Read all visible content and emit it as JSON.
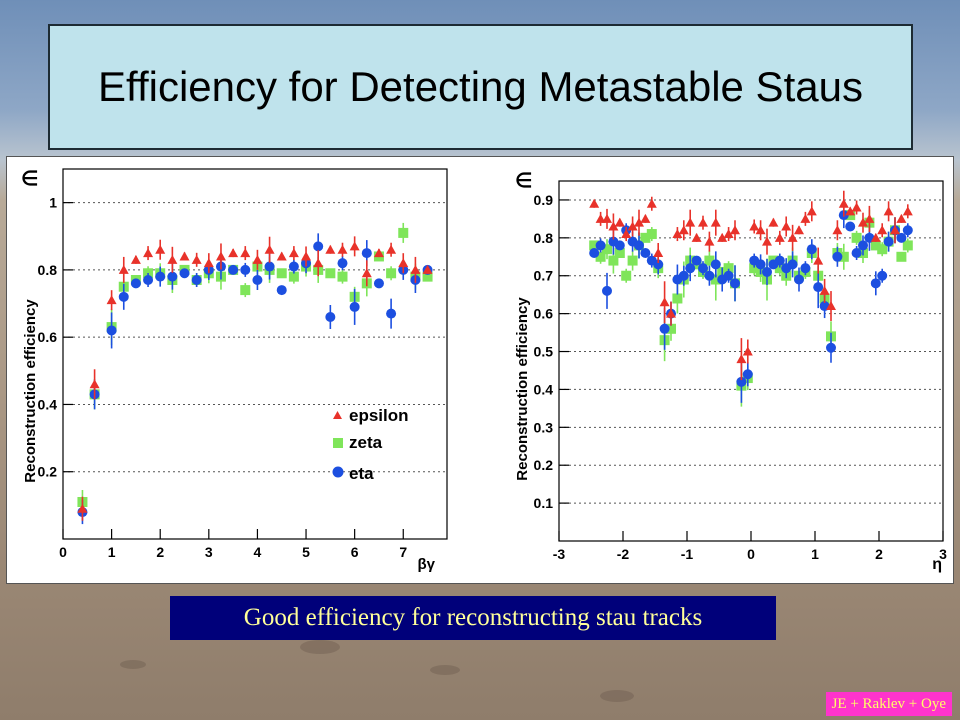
{
  "slide": {
    "title": "Efficiency for Detecting Metastable Staus",
    "caption": "Good efficiency for reconstructing stau tracks",
    "credit": "JE + Raklev + Oye"
  },
  "colors": {
    "epsilon": "#e8322a",
    "zeta": "#7fe55a",
    "eta": "#1c4fe0",
    "title_bg": "#bfe3ec",
    "caption_bg": "#00007a",
    "caption_text": "#ffff99",
    "credit_bg": "#ff33cc"
  },
  "chart_data": [
    {
      "type": "scatter",
      "title": "",
      "xlabel": "βγ",
      "ylabel": "Reconstruction efficiency",
      "ycorner": "∈",
      "xlim": [
        0,
        7.9
      ],
      "ylim": [
        0,
        1.1
      ],
      "xticks": [
        0,
        1,
        2,
        3,
        4,
        5,
        6,
        7
      ],
      "yticks": [
        0.2,
        0.4,
        0.6,
        0.8,
        1
      ],
      "grid": "horizontal dotted",
      "legend": {
        "position": "bottom-right",
        "entries": [
          "epsilon",
          "zeta",
          "eta"
        ]
      },
      "x": [
        0.4,
        0.65,
        1.0,
        1.25,
        1.5,
        1.75,
        2.0,
        2.25,
        2.5,
        2.75,
        3.0,
        3.25,
        3.5,
        3.75,
        4.0,
        4.25,
        4.5,
        4.75,
        5.0,
        5.25,
        5.5,
        5.75,
        6.0,
        6.25,
        6.5,
        6.75,
        7.0,
        7.25,
        7.5
      ],
      "series": [
        {
          "name": "epsilon",
          "marker": "triangle",
          "values": [
            0.09,
            0.46,
            0.71,
            0.8,
            0.83,
            0.85,
            0.86,
            0.83,
            0.84,
            0.83,
            0.82,
            0.84,
            0.85,
            0.85,
            0.83,
            0.86,
            0.84,
            0.85,
            0.84,
            0.82,
            0.86,
            0.86,
            0.87,
            0.79,
            0.85,
            0.86,
            0.82,
            0.8,
            0.8
          ]
        },
        {
          "name": "zeta",
          "marker": "square",
          "values": [
            0.11,
            0.43,
            0.63,
            0.75,
            0.77,
            0.79,
            0.79,
            0.77,
            0.8,
            0.77,
            0.79,
            0.78,
            0.8,
            0.74,
            0.81,
            0.8,
            0.79,
            0.78,
            0.81,
            0.8,
            0.79,
            0.78,
            0.72,
            0.76,
            0.84,
            0.79,
            0.91,
            0.78,
            0.78
          ]
        },
        {
          "name": "eta",
          "marker": "circle",
          "values": [
            0.08,
            0.43,
            0.62,
            0.72,
            0.76,
            0.77,
            0.78,
            0.78,
            0.79,
            0.77,
            0.8,
            0.81,
            0.8,
            0.8,
            0.77,
            0.81,
            0.74,
            0.81,
            0.82,
            0.87,
            0.66,
            0.82,
            0.69,
            0.85,
            0.76,
            0.67,
            0.8,
            0.77,
            0.8
          ]
        }
      ]
    },
    {
      "type": "scatter",
      "title": "",
      "xlabel": "η",
      "ylabel": "Reconstruction efficiency",
      "ycorner": "∈",
      "xlim": [
        -3,
        3
      ],
      "ylim": [
        0,
        0.95
      ],
      "xticks": [
        -3,
        -2,
        -1,
        0,
        1,
        2,
        3
      ],
      "yticks": [
        0.1,
        0.2,
        0.3,
        0.4,
        0.5,
        0.6,
        0.7,
        0.8,
        0.9
      ],
      "grid": "horizontal dotted",
      "x": [
        -2.45,
        -2.35,
        -2.25,
        -2.15,
        -2.05,
        -1.95,
        -1.85,
        -1.75,
        -1.65,
        -1.55,
        -1.45,
        -1.35,
        -1.25,
        -1.15,
        -1.05,
        -0.95,
        -0.85,
        -0.75,
        -0.65,
        -0.55,
        -0.45,
        -0.35,
        -0.25,
        -0.15,
        -0.05,
        0.05,
        0.15,
        0.25,
        0.35,
        0.45,
        0.55,
        0.65,
        0.75,
        0.85,
        0.95,
        1.05,
        1.15,
        1.25,
        1.35,
        1.45,
        1.55,
        1.65,
        1.75,
        1.85,
        1.95,
        2.05,
        2.15,
        2.25,
        2.35,
        2.45
      ],
      "series": [
        {
          "name": "epsilon",
          "marker": "triangle",
          "values": [
            0.89,
            0.85,
            0.85,
            0.83,
            0.84,
            0.81,
            0.83,
            0.84,
            0.85,
            0.89,
            0.76,
            0.63,
            0.6,
            0.81,
            0.82,
            0.84,
            0.8,
            0.84,
            0.79,
            0.84,
            0.8,
            0.81,
            0.82,
            0.48,
            0.5,
            0.83,
            0.82,
            0.79,
            0.84,
            0.8,
            0.83,
            0.8,
            0.82,
            0.85,
            0.87,
            0.74,
            0.66,
            0.62,
            0.82,
            0.89,
            0.87,
            0.88,
            0.84,
            0.85,
            0.8,
            0.82,
            0.87,
            0.82,
            0.85,
            0.87
          ]
        },
        {
          "name": "zeta",
          "marker": "square",
          "values": [
            0.78,
            0.75,
            0.77,
            0.74,
            0.76,
            0.7,
            0.74,
            0.78,
            0.8,
            0.81,
            0.72,
            0.53,
            0.56,
            0.64,
            0.69,
            0.74,
            0.73,
            0.71,
            0.74,
            0.69,
            0.71,
            0.72,
            0.68,
            0.41,
            0.43,
            0.72,
            0.71,
            0.69,
            0.74,
            0.72,
            0.7,
            0.74,
            0.7,
            0.71,
            0.76,
            0.7,
            0.64,
            0.54,
            0.76,
            0.75,
            0.86,
            0.8,
            0.76,
            0.84,
            0.78,
            0.77,
            0.79,
            0.82,
            0.75,
            0.78
          ]
        },
        {
          "name": "eta",
          "marker": "circle",
          "values": [
            0.76,
            0.78,
            0.66,
            0.79,
            0.78,
            0.82,
            0.79,
            0.78,
            0.76,
            0.74,
            0.73,
            0.56,
            0.6,
            0.69,
            0.7,
            0.72,
            0.74,
            0.72,
            0.7,
            0.73,
            0.69,
            0.7,
            0.68,
            0.42,
            0.44,
            0.74,
            0.73,
            0.71,
            0.73,
            0.74,
            0.72,
            0.73,
            0.69,
            0.72,
            0.77,
            0.67,
            0.62,
            0.51,
            0.75,
            0.86,
            0.83,
            0.76,
            0.78,
            0.8,
            0.68,
            0.7,
            0.79,
            0.82,
            0.8,
            0.82
          ]
        }
      ]
    }
  ]
}
